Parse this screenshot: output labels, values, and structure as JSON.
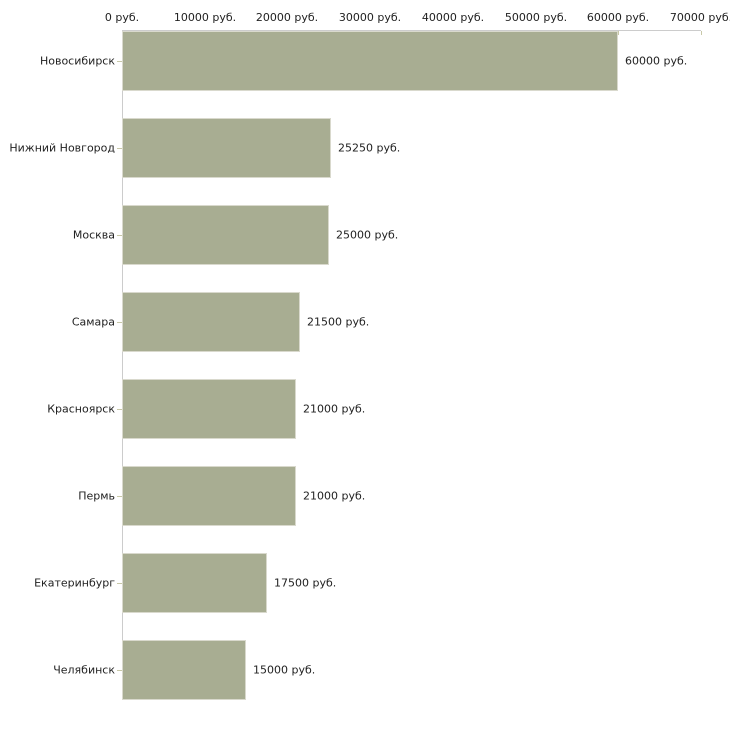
{
  "chart_data": {
    "type": "bar",
    "orientation": "horizontal",
    "title": "",
    "xlabel": "",
    "ylabel": "",
    "unit": "руб.",
    "categories": [
      "Новосибирск",
      "Нижний Новгород",
      "Москва",
      "Самара",
      "Красноярск",
      "Пермь",
      "Екатеринбург",
      "Челябинск"
    ],
    "values": [
      60000,
      25250,
      25000,
      21500,
      21000,
      21000,
      17500,
      15000
    ],
    "value_labels": [
      "60000 руб.",
      "25250 руб.",
      "25000 руб.",
      "21500 руб.",
      "21000 руб.",
      "21000 руб.",
      "17500 руб.",
      "15000 руб."
    ],
    "x_ticks": [
      0,
      10000,
      20000,
      30000,
      40000,
      50000,
      60000,
      70000
    ],
    "x_tick_labels": [
      "0 руб.",
      "10000 руб.",
      "20000 руб.",
      "30000 руб.",
      "40000 руб.",
      "50000 руб.",
      "60000 руб.",
      "70000 руб."
    ],
    "xlim": [
      0,
      70000
    ],
    "grid": false,
    "legend": null,
    "axis_position": "top",
    "colors": {
      "bar_fill": "#a8ad92",
      "bar_border": "#d9d9cd",
      "axis_line": "#cccccc",
      "tick_mark": "#c8c8a8",
      "text": "#222222",
      "background": "#ffffff"
    }
  }
}
